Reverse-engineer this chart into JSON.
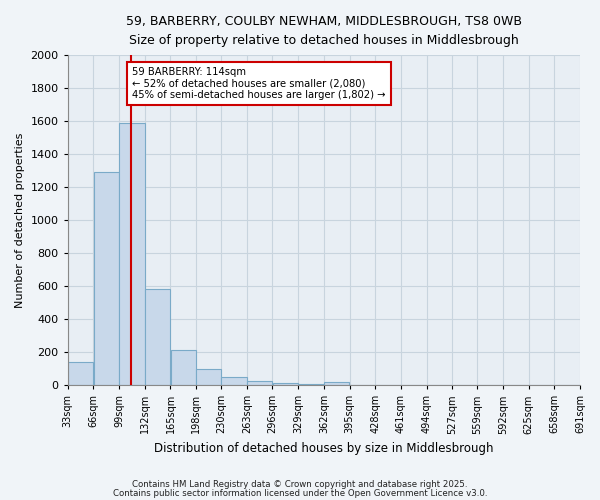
{
  "title1": "59, BARBERRY, COULBY NEWHAM, MIDDLESBROUGH, TS8 0WB",
  "title2": "Size of property relative to detached houses in Middlesbrough",
  "xlabel": "Distribution of detached houses by size in Middlesbrough",
  "ylabel": "Number of detached properties",
  "bar_color": "#c8d8ea",
  "bar_edge_color": "#7aaac8",
  "bins": [
    33,
    66,
    99,
    132,
    165,
    198,
    230,
    263,
    296,
    329,
    362,
    395,
    428,
    461,
    494,
    527,
    559,
    592,
    625,
    658,
    691
  ],
  "bin_labels": [
    "33sqm",
    "66sqm",
    "99sqm",
    "132sqm",
    "165sqm",
    "198sqm",
    "230sqm",
    "263sqm",
    "296sqm",
    "329sqm",
    "362sqm",
    "395sqm",
    "428sqm",
    "461sqm",
    "494sqm",
    "527sqm",
    "559sqm",
    "592sqm",
    "625sqm",
    "658sqm",
    "691sqm"
  ],
  "counts": [
    140,
    1290,
    1590,
    580,
    215,
    100,
    48,
    25,
    15,
    5,
    18,
    0,
    0,
    0,
    0,
    0,
    0,
    0,
    0,
    0
  ],
  "property_size": 114,
  "red_line_x": 114,
  "annotation_text": "59 BARBERRY: 114sqm\n← 52% of detached houses are smaller (2,080)\n45% of semi-detached houses are larger (1,802) →",
  "annotation_box_color": "#ffffff",
  "annotation_box_edge": "#cc0000",
  "red_line_color": "#cc0000",
  "grid_color": "#c8d4de",
  "background_color": "#e8eef4",
  "ylim": [
    0,
    2000
  ],
  "yticks": [
    0,
    200,
    400,
    600,
    800,
    1000,
    1200,
    1400,
    1600,
    1800,
    2000
  ],
  "footer1": "Contains HM Land Registry data © Crown copyright and database right 2025.",
  "footer2": "Contains public sector information licensed under the Open Government Licence v3.0.",
  "fig_bg": "#f0f4f8"
}
